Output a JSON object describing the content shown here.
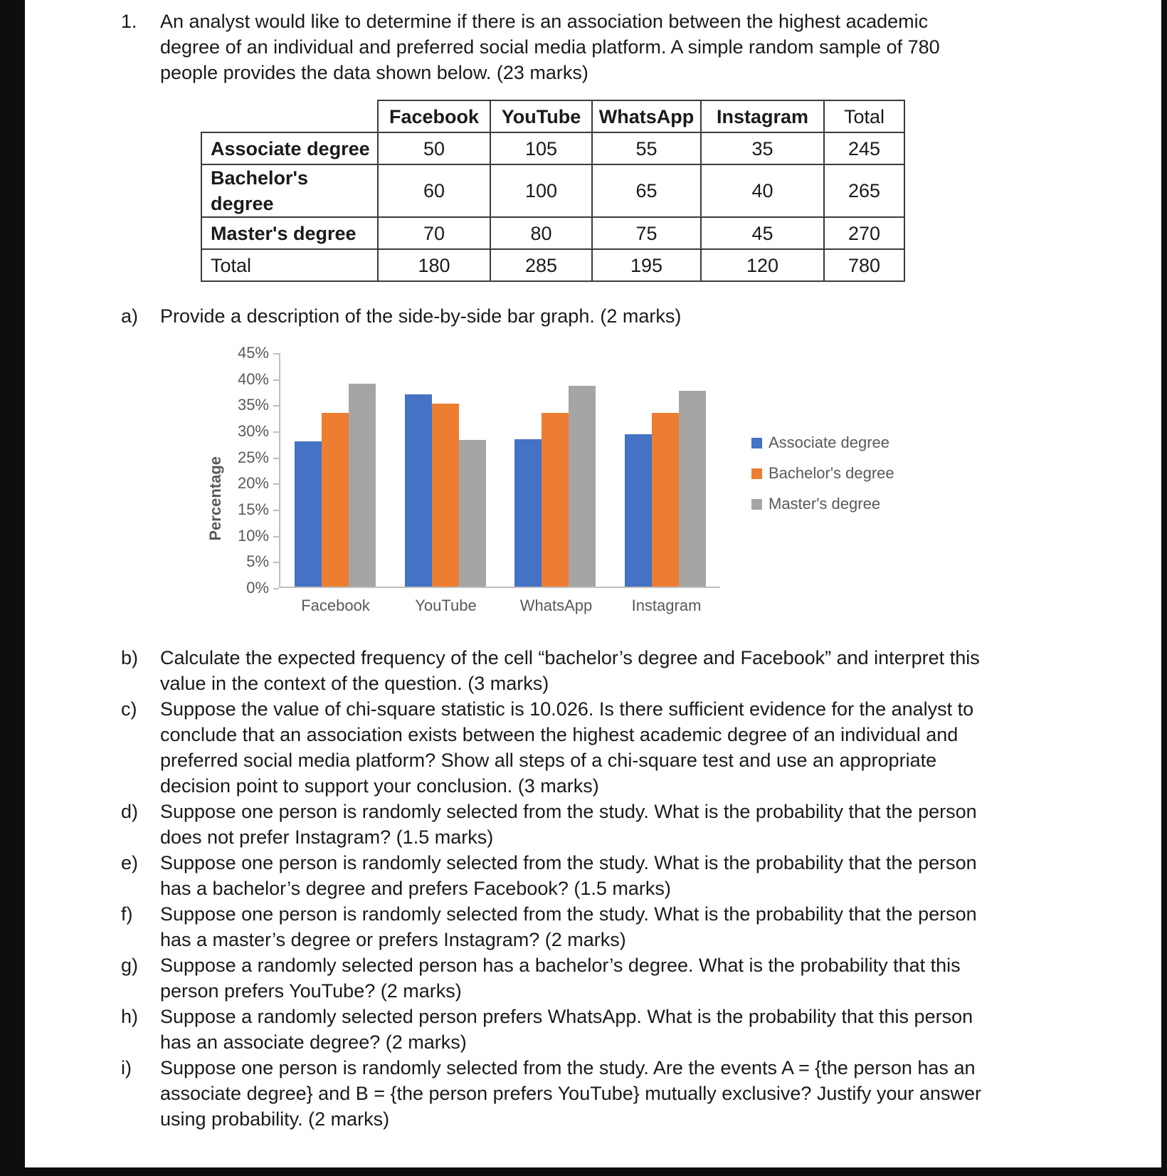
{
  "page": {
    "question_number": "1.",
    "question_text": "An analyst would like to determine if there is an association between the highest academic degree of an individual and preferred social media platform.  A simple random sample of 780 people provides the data shown below.  (23 marks)",
    "table": {
      "col_headers": [
        "Facebook",
        "YouTube",
        "WhatsApp",
        "Instagram",
        "Total"
      ],
      "rows": [
        {
          "label": "Associate degree",
          "values": [
            50,
            105,
            55,
            35,
            245
          ]
        },
        {
          "label": "Bachelor's degree",
          "values": [
            60,
            100,
            65,
            40,
            265
          ]
        },
        {
          "label": "Master's degree",
          "values": [
            70,
            80,
            75,
            45,
            270
          ]
        },
        {
          "label": "Total",
          "values": [
            180,
            285,
            195,
            120,
            780
          ]
        }
      ]
    },
    "part_a": {
      "letter": "a)",
      "text": "Provide a description of the side-by-side bar graph.  (2 marks)"
    },
    "parts": [
      {
        "letter": "b)",
        "text": "Calculate the expected frequency of the cell “bachelor’s degree and Facebook” and interpret this value in the context of the question.  (3 marks)"
      },
      {
        "letter": "c)",
        "text": "Suppose the value of chi-square statistic is 10.026.  Is there sufficient evidence for the analyst to conclude that an association exists between the highest academic degree of an individual and preferred social media platform?  Show all steps of a chi-square test and use an appropriate decision point to support your conclusion.  (3 marks)"
      },
      {
        "letter": "d)",
        "text": "Suppose one person is randomly selected from the study.  What is the probability that the person does not prefer Instagram?  (1.5 marks)"
      },
      {
        "letter": "e)",
        "text": "Suppose one person is randomly selected from the study.  What is the probability that the person has a bachelor’s degree and prefers Facebook?  (1.5 marks)"
      },
      {
        "letter": "f)",
        "text": "Suppose one person is randomly selected from the study.  What is the probability that the person has a master’s degree or prefers Instagram?  (2 marks)"
      },
      {
        "letter": "g)",
        "text": "Suppose a randomly selected person has a bachelor’s degree.  What is the probability that this person prefers YouTube?  (2 marks)"
      },
      {
        "letter": "h)",
        "text": "Suppose a randomly selected person prefers WhatsApp.  What is the probability that this person has an associate degree?  (2 marks)"
      },
      {
        "letter": "i)",
        "text": "Suppose one person is randomly selected from the study.  Are the events A = {the person has an associate degree} and B = {the person prefers YouTube} mutually exclusive?  Justify your answer using probability.  (2 marks)"
      }
    ]
  },
  "chart_data": {
    "type": "bar",
    "categories": [
      "Facebook",
      "YouTube",
      "WhatsApp",
      "Instagram"
    ],
    "series": [
      {
        "name": "Associate degree",
        "color": "#4472C4",
        "values": [
          27.8,
          36.8,
          28.2,
          29.2
        ]
      },
      {
        "name": "Bachelor's degree",
        "color": "#ED7D31",
        "values": [
          33.3,
          35.1,
          33.3,
          33.3
        ]
      },
      {
        "name": "Master's degree",
        "color": "#A5A5A5",
        "values": [
          38.9,
          28.1,
          38.5,
          37.5
        ]
      }
    ],
    "title": "",
    "xlabel": "",
    "ylabel": "Percentage",
    "ylim": [
      0,
      45
    ],
    "y_ticks": [
      "45%",
      "40%",
      "35%",
      "30%",
      "25%",
      "20%",
      "15%",
      "10%",
      "5%",
      "0%"
    ],
    "grid": false,
    "legend_position": "right"
  }
}
